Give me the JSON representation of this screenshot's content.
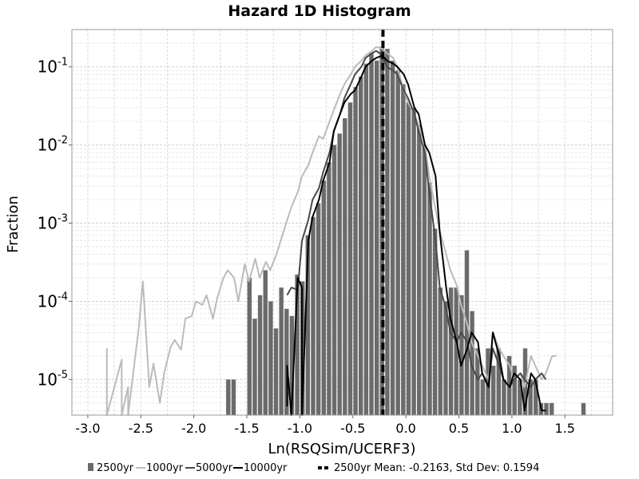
{
  "chart_data": {
    "type": "histogram",
    "title": "Hazard 1D Histogram",
    "xlabel": "Ln(RSQSim/UCERF3)",
    "ylabel": "Fraction",
    "xlim": [
      -3.15,
      1.95
    ],
    "ylim": [
      3.5e-06,
      0.3
    ],
    "y_scale": "log",
    "grid": true,
    "x_ticks": [
      "-3.0",
      "-2.5",
      "-2.0",
      "-1.5",
      "-1.0",
      "-0.5",
      "0.0",
      "0.5",
      "1.0",
      "1.5"
    ],
    "x_tick_values": [
      -3.0,
      -2.5,
      -2.0,
      -1.5,
      -1.0,
      -0.5,
      0.0,
      0.5,
      1.0,
      1.5
    ],
    "y_ticks": [
      {
        "base": "10",
        "exp": "-1",
        "value": 0.1
      },
      {
        "base": "10",
        "exp": "-2",
        "value": 0.01
      },
      {
        "base": "10",
        "exp": "-3",
        "value": 0.001
      },
      {
        "base": "10",
        "exp": "-4",
        "value": 0.0001
      },
      {
        "base": "10",
        "exp": "-5",
        "value": 1e-05
      }
    ],
    "bin_width": 0.05,
    "bar_color": "#6b6b6b",
    "series": [
      {
        "name": "2500yr",
        "kind": "bar",
        "color": "#6b6b6b",
        "x": [
          -1.675,
          -1.625,
          -1.475,
          -1.425,
          -1.375,
          -1.325,
          -1.275,
          -1.225,
          -1.175,
          -1.125,
          -1.075,
          -1.025,
          -0.975,
          -0.925,
          -0.875,
          -0.825,
          -0.775,
          -0.725,
          -0.675,
          -0.625,
          -0.575,
          -0.525,
          -0.475,
          -0.425,
          -0.375,
          -0.325,
          -0.275,
          -0.225,
          -0.175,
          -0.125,
          -0.075,
          -0.025,
          0.025,
          0.075,
          0.125,
          0.175,
          0.225,
          0.275,
          0.325,
          0.375,
          0.425,
          0.475,
          0.525,
          0.575,
          0.625,
          0.675,
          0.725,
          0.775,
          0.825,
          0.875,
          0.925,
          0.975,
          1.025,
          1.075,
          1.125,
          1.175,
          1.225,
          1.275,
          1.325,
          1.375,
          1.675
        ],
        "y": [
          1e-05,
          1e-05,
          0.0002,
          6e-05,
          0.00012,
          0.00025,
          0.0001,
          4.5e-05,
          0.00015,
          8e-05,
          6.5e-05,
          0.00022,
          0.00018,
          0.0007,
          0.0012,
          0.0018,
          0.0035,
          0.006,
          0.01,
          0.014,
          0.022,
          0.035,
          0.055,
          0.075,
          0.11,
          0.15,
          0.12,
          0.18,
          0.17,
          0.12,
          0.09,
          0.06,
          0.035,
          0.03,
          0.018,
          0.01,
          0.0033,
          0.00085,
          0.00015,
          0.0001,
          0.00015,
          0.00015,
          0.00012,
          0.00045,
          7.5e-05,
          2.5e-05,
          1e-05,
          2.5e-05,
          1.5e-05,
          2.5e-05,
          1e-05,
          2e-05,
          1.5e-05,
          1e-05,
          2.5e-05,
          1e-05,
          1e-05,
          5e-06,
          5e-06,
          5e-06,
          5e-06
        ]
      },
      {
        "name": "1000yr",
        "kind": "line",
        "color": "#bbbbbb",
        "x": [
          -2.82,
          -2.82,
          -2.68,
          -2.68,
          -2.62,
          -2.62,
          -2.52,
          -2.48,
          -2.42,
          -2.38,
          -2.32,
          -2.28,
          -2.22,
          -2.18,
          -2.12,
          -2.08,
          -2.02,
          -1.98,
          -1.92,
          -1.88,
          -1.82,
          -1.78,
          -1.72,
          -1.68,
          -1.62,
          -1.58,
          -1.52,
          -1.48,
          -1.42,
          -1.38,
          -1.32,
          -1.28,
          -1.22,
          -1.18,
          -1.12,
          -1.08,
          -1.02,
          -0.98,
          -0.92,
          -0.88,
          -0.82,
          -0.78,
          -0.72,
          -0.68,
          -0.62,
          -0.58,
          -0.52,
          -0.48,
          -0.42,
          -0.38,
          -0.32,
          -0.28,
          -0.22,
          -0.18,
          -0.12,
          -0.08,
          -0.02,
          0.02,
          0.08,
          0.12,
          0.18,
          0.22,
          0.28,
          0.32,
          0.38,
          0.42,
          0.48,
          0.52,
          0.58,
          0.62,
          0.68,
          0.72,
          0.78,
          0.82,
          0.88,
          0.92,
          0.98,
          1.02,
          1.08,
          1.12,
          1.18,
          1.22,
          1.28,
          1.32,
          1.38,
          1.42
        ],
        "y": [
          2.5e-05,
          3.5e-06,
          1.8e-05,
          3.5e-06,
          8e-06,
          3.5e-06,
          4.5e-05,
          0.00018,
          8e-06,
          1.6e-05,
          5e-06,
          1.2e-05,
          2.6e-05,
          3.2e-05,
          2.4e-05,
          6e-05,
          6.5e-05,
          0.0001,
          9e-05,
          0.00012,
          6e-05,
          0.00011,
          0.0002,
          0.00025,
          0.0002,
          0.0001,
          0.0003,
          0.00018,
          0.00035,
          0.0002,
          0.00032,
          0.00025,
          0.0004,
          0.0006,
          0.0011,
          0.0016,
          0.0025,
          0.004,
          0.0055,
          0.008,
          0.013,
          0.012,
          0.02,
          0.028,
          0.045,
          0.06,
          0.08,
          0.1,
          0.12,
          0.14,
          0.16,
          0.18,
          0.17,
          0.15,
          0.13,
          0.1,
          0.05,
          0.035,
          0.025,
          0.018,
          0.01,
          0.004,
          0.0015,
          0.0008,
          0.0004,
          0.00025,
          0.00016,
          9e-05,
          5e-05,
          3e-05,
          2e-05,
          1.5e-05,
          1e-05,
          4e-05,
          2.5e-05,
          2e-05,
          1.5e-05,
          1e-05,
          1.2e-05,
          8e-06,
          2e-05,
          1.5e-05,
          1e-05,
          1.2e-05,
          2e-05,
          2e-05
        ]
      },
      {
        "name": "5000yr",
        "kind": "line",
        "color": "#4a4a4a",
        "x": [
          -1.12,
          -1.08,
          -1.02,
          -0.98,
          -0.92,
          -0.88,
          -0.82,
          -0.78,
          -0.72,
          -0.68,
          -0.62,
          -0.58,
          -0.52,
          -0.48,
          -0.42,
          -0.38,
          -0.32,
          -0.28,
          -0.22,
          -0.18,
          -0.12,
          -0.08,
          -0.02,
          0.02,
          0.08,
          0.12,
          0.18,
          0.22,
          0.28,
          0.32,
          0.38,
          0.42,
          0.48,
          0.52,
          0.58,
          0.62,
          0.68,
          0.72,
          0.78,
          0.82,
          0.88,
          0.92,
          0.98,
          1.02,
          1.08,
          1.12,
          1.18,
          1.22,
          1.28,
          1.32
        ],
        "y": [
          0.00012,
          0.00015,
          0.00014,
          0.0006,
          0.0011,
          0.002,
          0.0028,
          0.0045,
          0.008,
          0.015,
          0.025,
          0.04,
          0.06,
          0.08,
          0.1,
          0.13,
          0.15,
          0.16,
          0.14,
          0.1,
          0.09,
          0.08,
          0.05,
          0.04,
          0.025,
          0.015,
          0.008,
          0.0025,
          0.0006,
          0.00015,
          8e-05,
          4e-05,
          3e-05,
          4e-05,
          3e-05,
          1.5e-05,
          1e-05,
          1.2e-05,
          8e-06,
          2.5e-05,
          1.5e-05,
          1e-05,
          8e-06,
          1e-05,
          1.2e-05,
          1e-05,
          8e-06,
          1e-05,
          1.2e-05,
          1e-05
        ]
      },
      {
        "name": "10000yr",
        "kind": "line",
        "color": "#000000",
        "x": [
          -1.12,
          -1.12,
          -1.08,
          -1.02,
          -0.98,
          -0.98,
          -0.92,
          -0.88,
          -0.82,
          -0.78,
          -0.72,
          -0.68,
          -0.62,
          -0.58,
          -0.52,
          -0.48,
          -0.42,
          -0.38,
          -0.32,
          -0.28,
          -0.22,
          -0.18,
          -0.12,
          -0.08,
          -0.02,
          0.02,
          0.08,
          0.12,
          0.18,
          0.22,
          0.28,
          0.32,
          0.38,
          0.42,
          0.48,
          0.52,
          0.58,
          0.62,
          0.68,
          0.72,
          0.78,
          0.82,
          0.88,
          0.92,
          0.98,
          1.02,
          1.08,
          1.12,
          1.18,
          1.22,
          1.28,
          1.32
        ],
        "y": [
          4.5e-06,
          1.5e-05,
          3.5e-06,
          0.0002,
          0.00015,
          3.5e-06,
          0.0006,
          0.0012,
          0.002,
          0.0035,
          0.006,
          0.015,
          0.025,
          0.035,
          0.045,
          0.05,
          0.075,
          0.1,
          0.12,
          0.13,
          0.14,
          0.12,
          0.11,
          0.1,
          0.08,
          0.06,
          0.03,
          0.025,
          0.01,
          0.008,
          0.004,
          0.00075,
          0.00015,
          6e-05,
          3e-05,
          1.5e-05,
          2.5e-05,
          4e-05,
          3e-05,
          1.2e-05,
          8e-06,
          4e-05,
          2e-05,
          1e-05,
          8e-06,
          1.2e-05,
          1e-05,
          4e-06,
          1.2e-05,
          1e-05,
          4e-06,
          4e-06
        ]
      },
      {
        "name": "2500yr Mean: -0.2163, Std Dev: 0.1594",
        "kind": "vline",
        "color": "#000000",
        "x": -0.2163
      }
    ],
    "legend": [
      {
        "symbol": "bar",
        "color": "#6b6b6b",
        "label": "2500yr"
      },
      {
        "symbol": "line",
        "color": "#bbbbbb",
        "label": "1000yr"
      },
      {
        "symbol": "line",
        "color": "#4a4a4a",
        "label": "5000yr"
      },
      {
        "symbol": "line",
        "color": "#000000",
        "label": "10000yr"
      },
      {
        "symbol": "dash",
        "color": "#000000",
        "label": "2500yr Mean: -0.2163, Std Dev: 0.1594"
      }
    ],
    "legend_placement": "bottom"
  }
}
